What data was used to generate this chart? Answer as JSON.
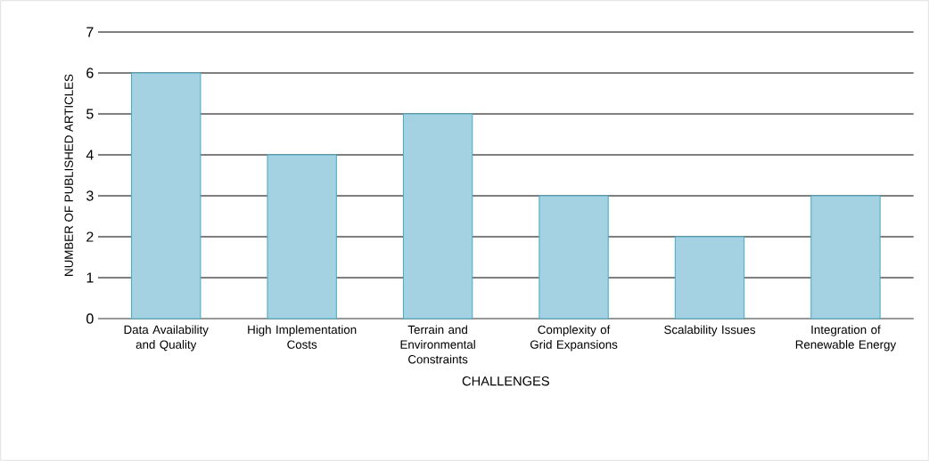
{
  "chart_data": {
    "type": "bar",
    "xlabel": "CHALLENGES",
    "ylabel": "NUMBER OF PUBLISHED ARTICLES",
    "categories": [
      "Data Availability and Quality",
      "High Implementation Costs",
      "Terrain and Environmental Constraints",
      "Complexity of Grid Expansions",
      "Scalability Issues",
      "Integration of Renewable Energy"
    ],
    "values": [
      6,
      4,
      5,
      3,
      2,
      3
    ],
    "color": "#a5d2e2",
    "ylim": [
      0,
      7
    ],
    "yticks": [
      0,
      1,
      2,
      3,
      4,
      5,
      6,
      7
    ],
    "grid": "y"
  }
}
